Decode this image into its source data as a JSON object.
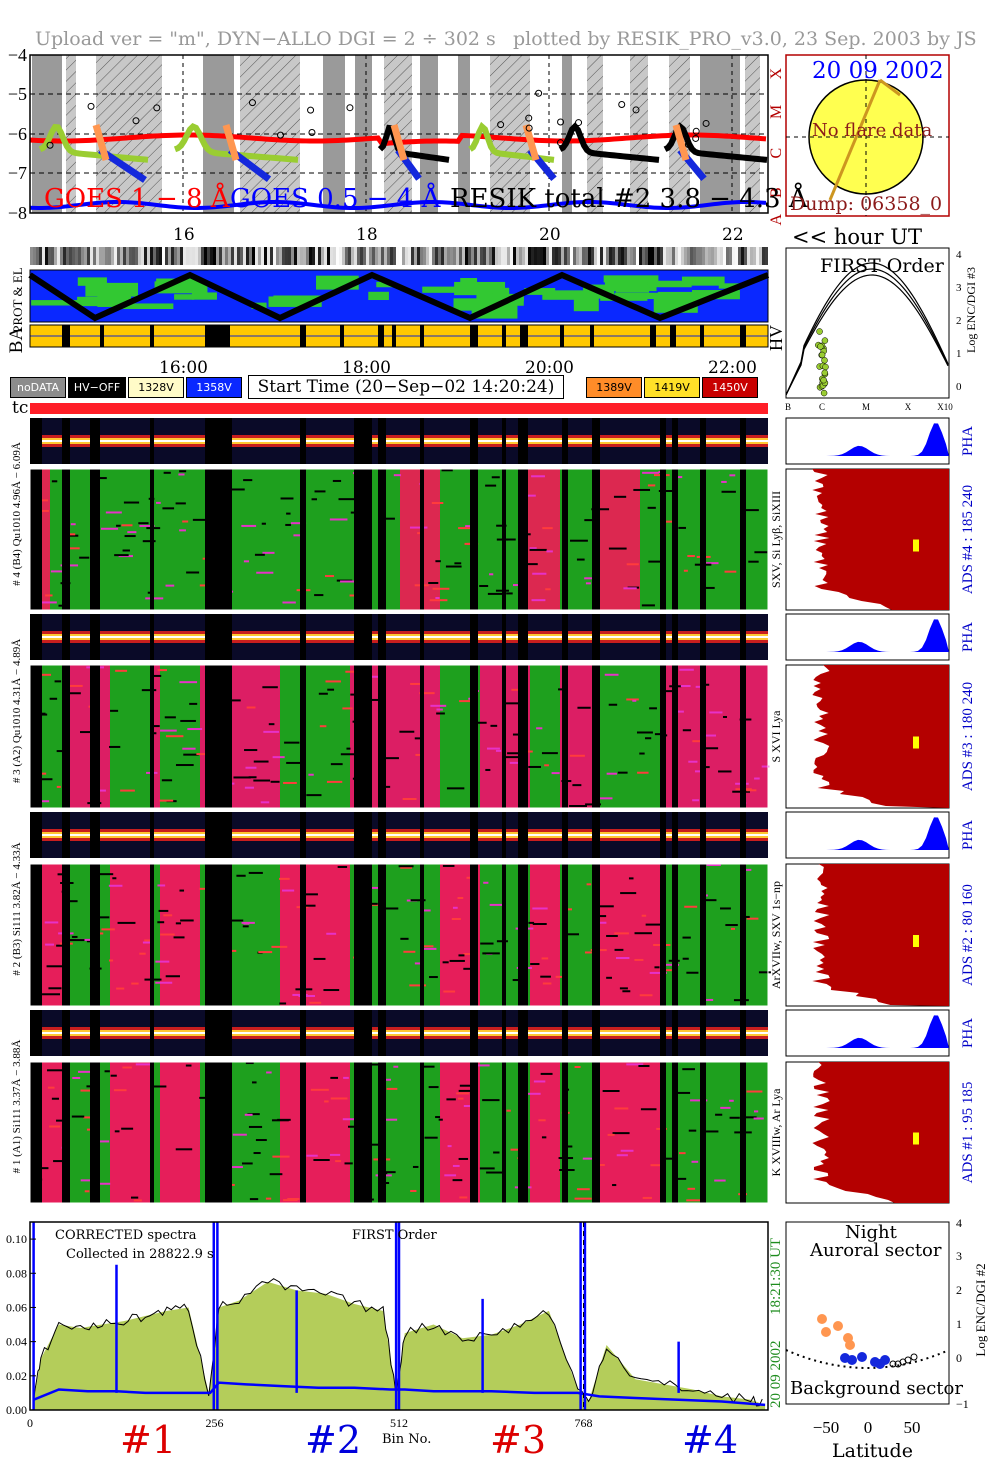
{
  "header": {
    "left": "Upload ver = \"m\", DYN−ALLO DGI =   2 ÷ 302 s",
    "right": "plotted by RESIK_PRO_v3.0, 23 Sep. 2003 by JS"
  },
  "goes_panel": {
    "y_ticks": [
      "−4",
      "−5",
      "−6",
      "−7",
      "−8"
    ],
    "class_letters": [
      "X",
      "M",
      "C",
      "B",
      "A"
    ],
    "legend_goes18": "GOES 1 − 8 Å",
    "legend_goes054": "GOES 0.5 − 4 Å",
    "legend_resik": "RESIK total #2  3.8 − 4.3 Å",
    "hour_ticks": [
      "16",
      "18",
      "20",
      "22"
    ],
    "hour_label": "<< hour UT"
  },
  "sun_panel": {
    "date": "20 09 2002",
    "no_flare": "No flare data",
    "dump": "Dump: 06358_0"
  },
  "status_panel": {
    "left_labels": [
      "PROT & EL",
      "BA"
    ],
    "right_label": "HV",
    "time_ticks": [
      "16:00",
      "18:00",
      "20:00",
      "22:00"
    ],
    "legend": [
      {
        "label": "noDATA",
        "bg": "#8c8c8c",
        "fg": "#ffffff"
      },
      {
        "label": "HV−OFF",
        "bg": "#000000",
        "fg": "#ffffff"
      },
      {
        "label": "1328V",
        "bg": "#fffbc8",
        "fg": "#000000"
      },
      {
        "label": "1358V",
        "bg": "#0a28ff",
        "fg": "#ffffff"
      },
      {
        "label": "1389V",
        "bg": "#ff8c28",
        "fg": "#000000"
      },
      {
        "label": "1419V",
        "bg": "#ffe028",
        "fg": "#000000"
      },
      {
        "label": "1450V",
        "bg": "#c80000",
        "fg": "#ffffff"
      }
    ],
    "start_time": "Start Time (20−Sep−02 14:20:24)"
  },
  "first_order_panel": {
    "title": "FIRST Order",
    "ylabel": "Log ENC/DGI #3",
    "y_ticks": [
      "4",
      "3",
      "2",
      "1",
      "0"
    ],
    "x_ticks": [
      "B",
      "C",
      "M",
      "X",
      "X10"
    ]
  },
  "spectrogram": {
    "tc_label": "tc",
    "channels": [
      {
        "pha_label": "# 4 (B4) Qu1010 4.96Å − 6.09Å",
        "left_label": "SXV, Si Lyβ, SiXIII",
        "ads": "ADS #4 :  185 240"
      },
      {
        "pha_label": "# 3 (A2) Qu1010 4.31Å − 4.89Å",
        "left_label": "S XVI Lya",
        "ads": "ADS #3 :  180 240"
      },
      {
        "pha_label": "# 2 (B3) Si111 3.82Å − 4.33Å",
        "left_label": "ArXVIIw, SXV 1s−np",
        "ads": "ADS #2 :   80 160"
      },
      {
        "pha_label": "# 1 (A1) Si111 3.37Å − 3.88Å",
        "left_label": "K XVIIIw, Ar Lya",
        "ads": "ADS #1 :   95 185"
      }
    ],
    "pha_text": "PHA"
  },
  "spectrum_panel": {
    "note1": "CORRECTED spectra",
    "note2": "Collected in 28822.9 s",
    "note3": "FIRST Order",
    "date_right": "20 09 2002",
    "time_right": "18:21:30 UT",
    "xlabel": "Bin No.",
    "x_ticks": [
      "0",
      "256",
      "512",
      "768"
    ],
    "y_ticks": [
      "0.10",
      "0.08",
      "0.06",
      "0.04",
      "0.02",
      "0.00"
    ],
    "channel_numbers": [
      "#1",
      "#2",
      "#3",
      "#4"
    ]
  },
  "orbit_panel": {
    "title1": "Night",
    "title2": "Auroral sector",
    "bottom": "Background sector",
    "ylabel": "Log ENC/DGI #2",
    "xlabel": "Latitude",
    "x_ticks": [
      "−50",
      "0",
      "50"
    ],
    "y_ticks": [
      "4",
      "3",
      "2",
      "1",
      "0",
      "−1"
    ]
  },
  "chart_data": {
    "type": "line",
    "xlabel": "Bin No.",
    "xlim": [
      0,
      1024
    ],
    "ylim": [
      0.0,
      0.11
    ],
    "series": [
      {
        "x": [
          5,
          15,
          40,
          70,
          100,
          130,
          160,
          190,
          220,
          248,
          262,
          290,
          330,
          370,
          410,
          450,
          490,
          508,
          520,
          560,
          600,
          640,
          680,
          720,
          760,
          775,
          800,
          840,
          880,
          920,
          960,
          1000,
          1020
        ],
        "values": [
          0.005,
          0.03,
          0.05,
          0.048,
          0.05,
          0.052,
          0.055,
          0.058,
          0.06,
          0.01,
          0.06,
          0.064,
          0.075,
          0.07,
          0.068,
          0.062,
          0.058,
          0.01,
          0.045,
          0.05,
          0.042,
          0.044,
          0.05,
          0.058,
          0.012,
          0.005,
          0.038,
          0.018,
          0.015,
          0.012,
          0.008,
          0.006,
          0.003
        ]
      },
      {
        "x": [
          5,
          40,
          80,
          120,
          160,
          200,
          250,
          262,
          300,
          350,
          400,
          450,
          500,
          520,
          560,
          600,
          640,
          700,
          760,
          790,
          840,
          900,
          960,
          1020
        ],
        "values": [
          0.006,
          0.012,
          0.011,
          0.011,
          0.01,
          0.01,
          0.01,
          0.016,
          0.015,
          0.014,
          0.013,
          0.013,
          0.012,
          0.012,
          0.011,
          0.011,
          0.011,
          0.01,
          0.01,
          0.008,
          0.007,
          0.006,
          0.005,
          0.003
        ]
      }
    ]
  },
  "colors": {
    "goes18": "#ff0000",
    "goes054": "#0000ff",
    "resik": "#000000",
    "olive": "#9acd32",
    "spectrum_fill": "#b4cd5a",
    "ads_fill": "#b40000",
    "pha_fill": "#0000ff"
  }
}
